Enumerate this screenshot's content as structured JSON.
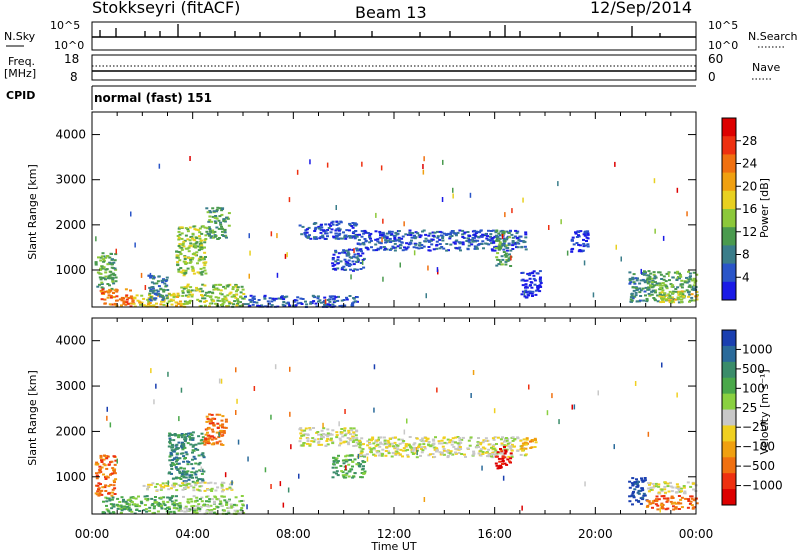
{
  "header": {
    "station": "Stokkseyri (fitACF)",
    "beam": "Beam 13",
    "date": "12/Sep/2014"
  },
  "nsky_panel": {
    "label": "N.Sky",
    "left_ticks": [
      "10^5",
      "10^0"
    ],
    "right_ticks": [
      "10^5",
      "10^0"
    ],
    "right_label": "N.Search"
  },
  "freq_panel": {
    "label_line1": "Freq.",
    "label_line2": "[MHz]",
    "left_ticks": [
      "18",
      "8"
    ],
    "right_ticks": [
      "60",
      "0"
    ],
    "right_label": "Nave"
  },
  "cpid_panel": {
    "label": "CPID",
    "mode": "normal (fast) 151"
  },
  "chart_data": [
    {
      "type": "heatmap",
      "name": "power-panel",
      "ylabel": "Slant Range [km]",
      "yticks": [
        "1000",
        "2000",
        "3000",
        "4000"
      ],
      "ylim": [
        180,
        4500
      ],
      "xlim": [
        0,
        24
      ],
      "colorbar": {
        "label": "Power [dB]",
        "ticks": [
          "4",
          "8",
          "12",
          "16",
          "20",
          "24",
          "28"
        ],
        "colors": [
          "#1a1ae6",
          "#2a55c8",
          "#3a7d8a",
          "#4a9a4e",
          "#8cc83a",
          "#e8d020",
          "#f0a010",
          "#f07010",
          "#ee3010",
          "#dd0000"
        ]
      },
      "patches": [
        {
          "t0": 0.1,
          "t1": 0.9,
          "r0": 600,
          "r1": 1400,
          "level": 3
        },
        {
          "t0": 0.3,
          "t1": 1.6,
          "r0": 200,
          "r1": 600,
          "level": 7
        },
        {
          "t0": 1.6,
          "t1": 3.5,
          "r0": 200,
          "r1": 500,
          "level": 5
        },
        {
          "t0": 2.2,
          "t1": 3.0,
          "r0": 300,
          "r1": 900,
          "level": 2
        },
        {
          "t0": 3.3,
          "t1": 4.5,
          "r0": 900,
          "r1": 2000,
          "level": 4
        },
        {
          "t0": 4.5,
          "t1": 5.4,
          "r0": 1700,
          "r1": 2400,
          "level": 3
        },
        {
          "t0": 3.5,
          "t1": 6.0,
          "r0": 200,
          "r1": 700,
          "level": 4
        },
        {
          "t0": 6.0,
          "t1": 10.5,
          "r0": 200,
          "r1": 450,
          "level": 1
        },
        {
          "t0": 8.2,
          "t1": 10.5,
          "r0": 1700,
          "r1": 2100,
          "level": 1
        },
        {
          "t0": 9.5,
          "t1": 10.8,
          "r0": 1000,
          "r1": 1500,
          "level": 1
        },
        {
          "t0": 10.5,
          "t1": 17.2,
          "r0": 1450,
          "r1": 1900,
          "level": 1
        },
        {
          "t0": 16.0,
          "t1": 16.6,
          "r0": 1100,
          "r1": 1900,
          "level": 3
        },
        {
          "t0": 17.0,
          "t1": 17.8,
          "r0": 400,
          "r1": 1000,
          "level": 0
        },
        {
          "t0": 19.0,
          "t1": 19.7,
          "r0": 1400,
          "r1": 1900,
          "level": 0
        },
        {
          "t0": 21.3,
          "t1": 22.0,
          "r0": 300,
          "r1": 1000,
          "level": 2
        },
        {
          "t0": 22.0,
          "t1": 24.0,
          "r0": 300,
          "r1": 1000,
          "level": 3
        },
        {
          "t0": 22.5,
          "t1": 24.0,
          "r0": 300,
          "r1": 550,
          "level": 5
        }
      ]
    },
    {
      "type": "heatmap",
      "name": "velocity-panel",
      "ylabel": "Slant Range [km]",
      "yticks": [
        "1000",
        "2000",
        "3000",
        "4000"
      ],
      "ylim": [
        180,
        4500
      ],
      "xlim": [
        0,
        24
      ],
      "xticks": [
        "00:00",
        "04:00",
        "08:00",
        "12:00",
        "16:00",
        "20:00",
        "00:00"
      ],
      "xlabel": "Time UT",
      "colorbar": {
        "label": "Velocity [m s⁻¹]",
        "ticks": [
          "1000",
          "500",
          "100",
          "25",
          "−25",
          "−100",
          "−500",
          "−1000"
        ],
        "colors": [
          "#1a3fb0",
          "#2a6a9a",
          "#3a8c6a",
          "#4aa84a",
          "#8ad040",
          "#c8c8c8",
          "#f0d020",
          "#f0a010",
          "#f07010",
          "#ee3010",
          "#dd0000"
        ]
      },
      "patches": [
        {
          "t0": 0.1,
          "t1": 0.9,
          "r0": 600,
          "r1": 1500,
          "level": 8
        },
        {
          "t0": 0.3,
          "t1": 3.5,
          "r0": 200,
          "r1": 600,
          "level": 3
        },
        {
          "t0": 3.0,
          "t1": 4.4,
          "r0": 900,
          "r1": 2000,
          "level": 2
        },
        {
          "t0": 4.4,
          "t1": 5.3,
          "r0": 1700,
          "r1": 2400,
          "level": 8
        },
        {
          "t0": 3.5,
          "t1": 6.0,
          "r0": 200,
          "r1": 600,
          "level": 4
        },
        {
          "t0": 2.0,
          "t1": 5.5,
          "r0": 700,
          "r1": 900,
          "level": 5
        },
        {
          "t0": 8.2,
          "t1": 10.5,
          "r0": 1700,
          "r1": 2100,
          "level": 5
        },
        {
          "t0": 9.5,
          "t1": 10.8,
          "r0": 1000,
          "r1": 1500,
          "level": 3
        },
        {
          "t0": 10.5,
          "t1": 17.2,
          "r0": 1450,
          "r1": 1900,
          "level": 5
        },
        {
          "t0": 16.0,
          "t1": 16.6,
          "r0": 1200,
          "r1": 1700,
          "level": 10
        },
        {
          "t0": 17.0,
          "t1": 17.6,
          "r0": 1600,
          "r1": 1900,
          "level": 7
        },
        {
          "t0": 21.3,
          "t1": 22.0,
          "r0": 400,
          "r1": 1000,
          "level": 0
        },
        {
          "t0": 22.0,
          "t1": 24.0,
          "r0": 650,
          "r1": 900,
          "level": 5
        },
        {
          "t0": 22.0,
          "t1": 24.0,
          "r0": 300,
          "r1": 600,
          "level": 8
        }
      ]
    }
  ]
}
